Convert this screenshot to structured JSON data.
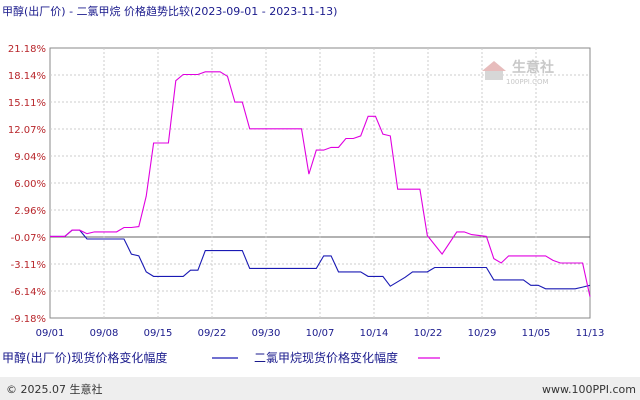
{
  "header": {
    "title": "甲醇(出厂价) - 二氯甲烷 价格趋势比较(2023-09-01 - 2023-11-13)"
  },
  "watermark": {
    "name": "生意社",
    "site": "100PPI.COM"
  },
  "footer": {
    "left": "© 2025.07 生意社",
    "right": "www.100PPI.com"
  },
  "legend": [
    {
      "label": "甲醇(出厂价)现货价格变化幅度",
      "color": "#1a1ab4"
    },
    {
      "label": "二氯甲烷现货价格变化幅度",
      "color": "#e000e0"
    }
  ],
  "chart_data": {
    "type": "line",
    "title": "甲醇(出厂价) - 二氯甲烷 价格趋势比较(2023-09-01 - 2023-11-13)",
    "xlabel": "",
    "ylabel": "",
    "x_tick_labels": [
      "09/01",
      "09/08",
      "09/15",
      "09/22",
      "09/30",
      "10/07",
      "10/14",
      "10/22",
      "10/29",
      "11/05",
      "11/13"
    ],
    "y_tick_labels": [
      "21.18%",
      "18.14%",
      "15.11%",
      "12.07%",
      "9.04%",
      "6.00%",
      "2.96%",
      "-0.07%",
      "-3.11%",
      "-6.14%",
      "-9.18%"
    ],
    "x_range": [
      "2023-09-01",
      "2023-11-13"
    ],
    "ylim": [
      -9.18,
      21.18
    ],
    "grid": true,
    "legend_position": "bottom",
    "series": [
      {
        "name": "甲醇(出厂价)现货价格变化幅度",
        "color": "#1a1ab4",
        "points": [
          [
            "2023-09-01",
            0.0
          ],
          [
            "2023-09-03",
            0.0
          ],
          [
            "2023-09-04",
            0.7
          ],
          [
            "2023-09-05",
            0.7
          ],
          [
            "2023-09-06",
            -0.3
          ],
          [
            "2023-09-11",
            -0.3
          ],
          [
            "2023-09-12",
            -2.0
          ],
          [
            "2023-09-13",
            -2.2
          ],
          [
            "2023-09-14",
            -4.0
          ],
          [
            "2023-09-15",
            -4.5
          ],
          [
            "2023-09-19",
            -4.5
          ],
          [
            "2023-09-20",
            -3.8
          ],
          [
            "2023-09-21",
            -3.8
          ],
          [
            "2023-09-22",
            -1.6
          ],
          [
            "2023-09-27",
            -1.6
          ],
          [
            "2023-09-28",
            -3.6
          ],
          [
            "2023-10-07",
            -3.6
          ],
          [
            "2023-10-08",
            -2.2
          ],
          [
            "2023-10-09",
            -2.2
          ],
          [
            "2023-10-10",
            -4.0
          ],
          [
            "2023-10-13",
            -4.0
          ],
          [
            "2023-10-14",
            -4.5
          ],
          [
            "2023-10-16",
            -4.5
          ],
          [
            "2023-10-17",
            -5.6
          ],
          [
            "2023-10-19",
            -4.6
          ],
          [
            "2023-10-20",
            -4.0
          ],
          [
            "2023-10-22",
            -4.0
          ],
          [
            "2023-10-23",
            -3.5
          ],
          [
            "2023-10-30",
            -3.5
          ],
          [
            "2023-10-31",
            -4.9
          ],
          [
            "2023-11-04",
            -4.9
          ],
          [
            "2023-11-05",
            -5.5
          ],
          [
            "2023-11-06",
            -5.5
          ],
          [
            "2023-11-07",
            -5.9
          ],
          [
            "2023-11-11",
            -5.9
          ],
          [
            "2023-11-12",
            -5.7
          ],
          [
            "2023-11-13",
            -5.5
          ]
        ]
      },
      {
        "name": "二氯甲烷现货价格变化幅度",
        "color": "#e000e0",
        "points": [
          [
            "2023-09-01",
            0.0
          ],
          [
            "2023-09-03",
            0.0
          ],
          [
            "2023-09-04",
            0.7
          ],
          [
            "2023-09-05",
            0.7
          ],
          [
            "2023-09-06",
            0.3
          ],
          [
            "2023-09-07",
            0.5
          ],
          [
            "2023-09-10",
            0.5
          ],
          [
            "2023-09-11",
            1.0
          ],
          [
            "2023-09-12",
            1.0
          ],
          [
            "2023-09-13",
            1.1
          ],
          [
            "2023-09-14",
            4.5
          ],
          [
            "2023-09-15",
            10.5
          ],
          [
            "2023-09-16",
            10.5
          ],
          [
            "2023-09-17",
            10.5
          ],
          [
            "2023-09-18",
            17.5
          ],
          [
            "2023-09-19",
            18.2
          ],
          [
            "2023-09-21",
            18.2
          ],
          [
            "2023-09-22",
            18.5
          ],
          [
            "2023-09-24",
            18.5
          ],
          [
            "2023-09-25",
            18.0
          ],
          [
            "2023-09-26",
            15.1
          ],
          [
            "2023-09-27",
            15.1
          ],
          [
            "2023-09-28",
            12.1
          ],
          [
            "2023-10-05",
            12.1
          ],
          [
            "2023-10-06",
            7.0
          ],
          [
            "2023-10-07",
            9.7
          ],
          [
            "2023-10-08",
            9.7
          ],
          [
            "2023-10-09",
            10.0
          ],
          [
            "2023-10-10",
            10.0
          ],
          [
            "2023-10-11",
            11.0
          ],
          [
            "2023-10-12",
            11.0
          ],
          [
            "2023-10-13",
            11.3
          ],
          [
            "2023-10-14",
            13.5
          ],
          [
            "2023-10-15",
            13.5
          ],
          [
            "2023-10-16",
            11.5
          ],
          [
            "2023-10-17",
            11.3
          ],
          [
            "2023-10-18",
            5.3
          ],
          [
            "2023-10-21",
            5.3
          ],
          [
            "2023-10-22",
            0.1
          ],
          [
            "2023-10-24",
            -2.0
          ],
          [
            "2023-10-26",
            0.5
          ],
          [
            "2023-10-27",
            0.5
          ],
          [
            "2023-10-28",
            0.2
          ],
          [
            "2023-10-30",
            0.0
          ],
          [
            "2023-10-31",
            -2.5
          ],
          [
            "2023-11-01",
            -3.0
          ],
          [
            "2023-11-02",
            -2.2
          ],
          [
            "2023-11-03",
            -2.2
          ],
          [
            "2023-11-07",
            -2.2
          ],
          [
            "2023-11-08",
            -2.7
          ],
          [
            "2023-11-09",
            -3.0
          ],
          [
            "2023-11-11",
            -3.0
          ],
          [
            "2023-11-12",
            -3.0
          ],
          [
            "2023-11-13",
            -6.8
          ]
        ]
      }
    ]
  }
}
